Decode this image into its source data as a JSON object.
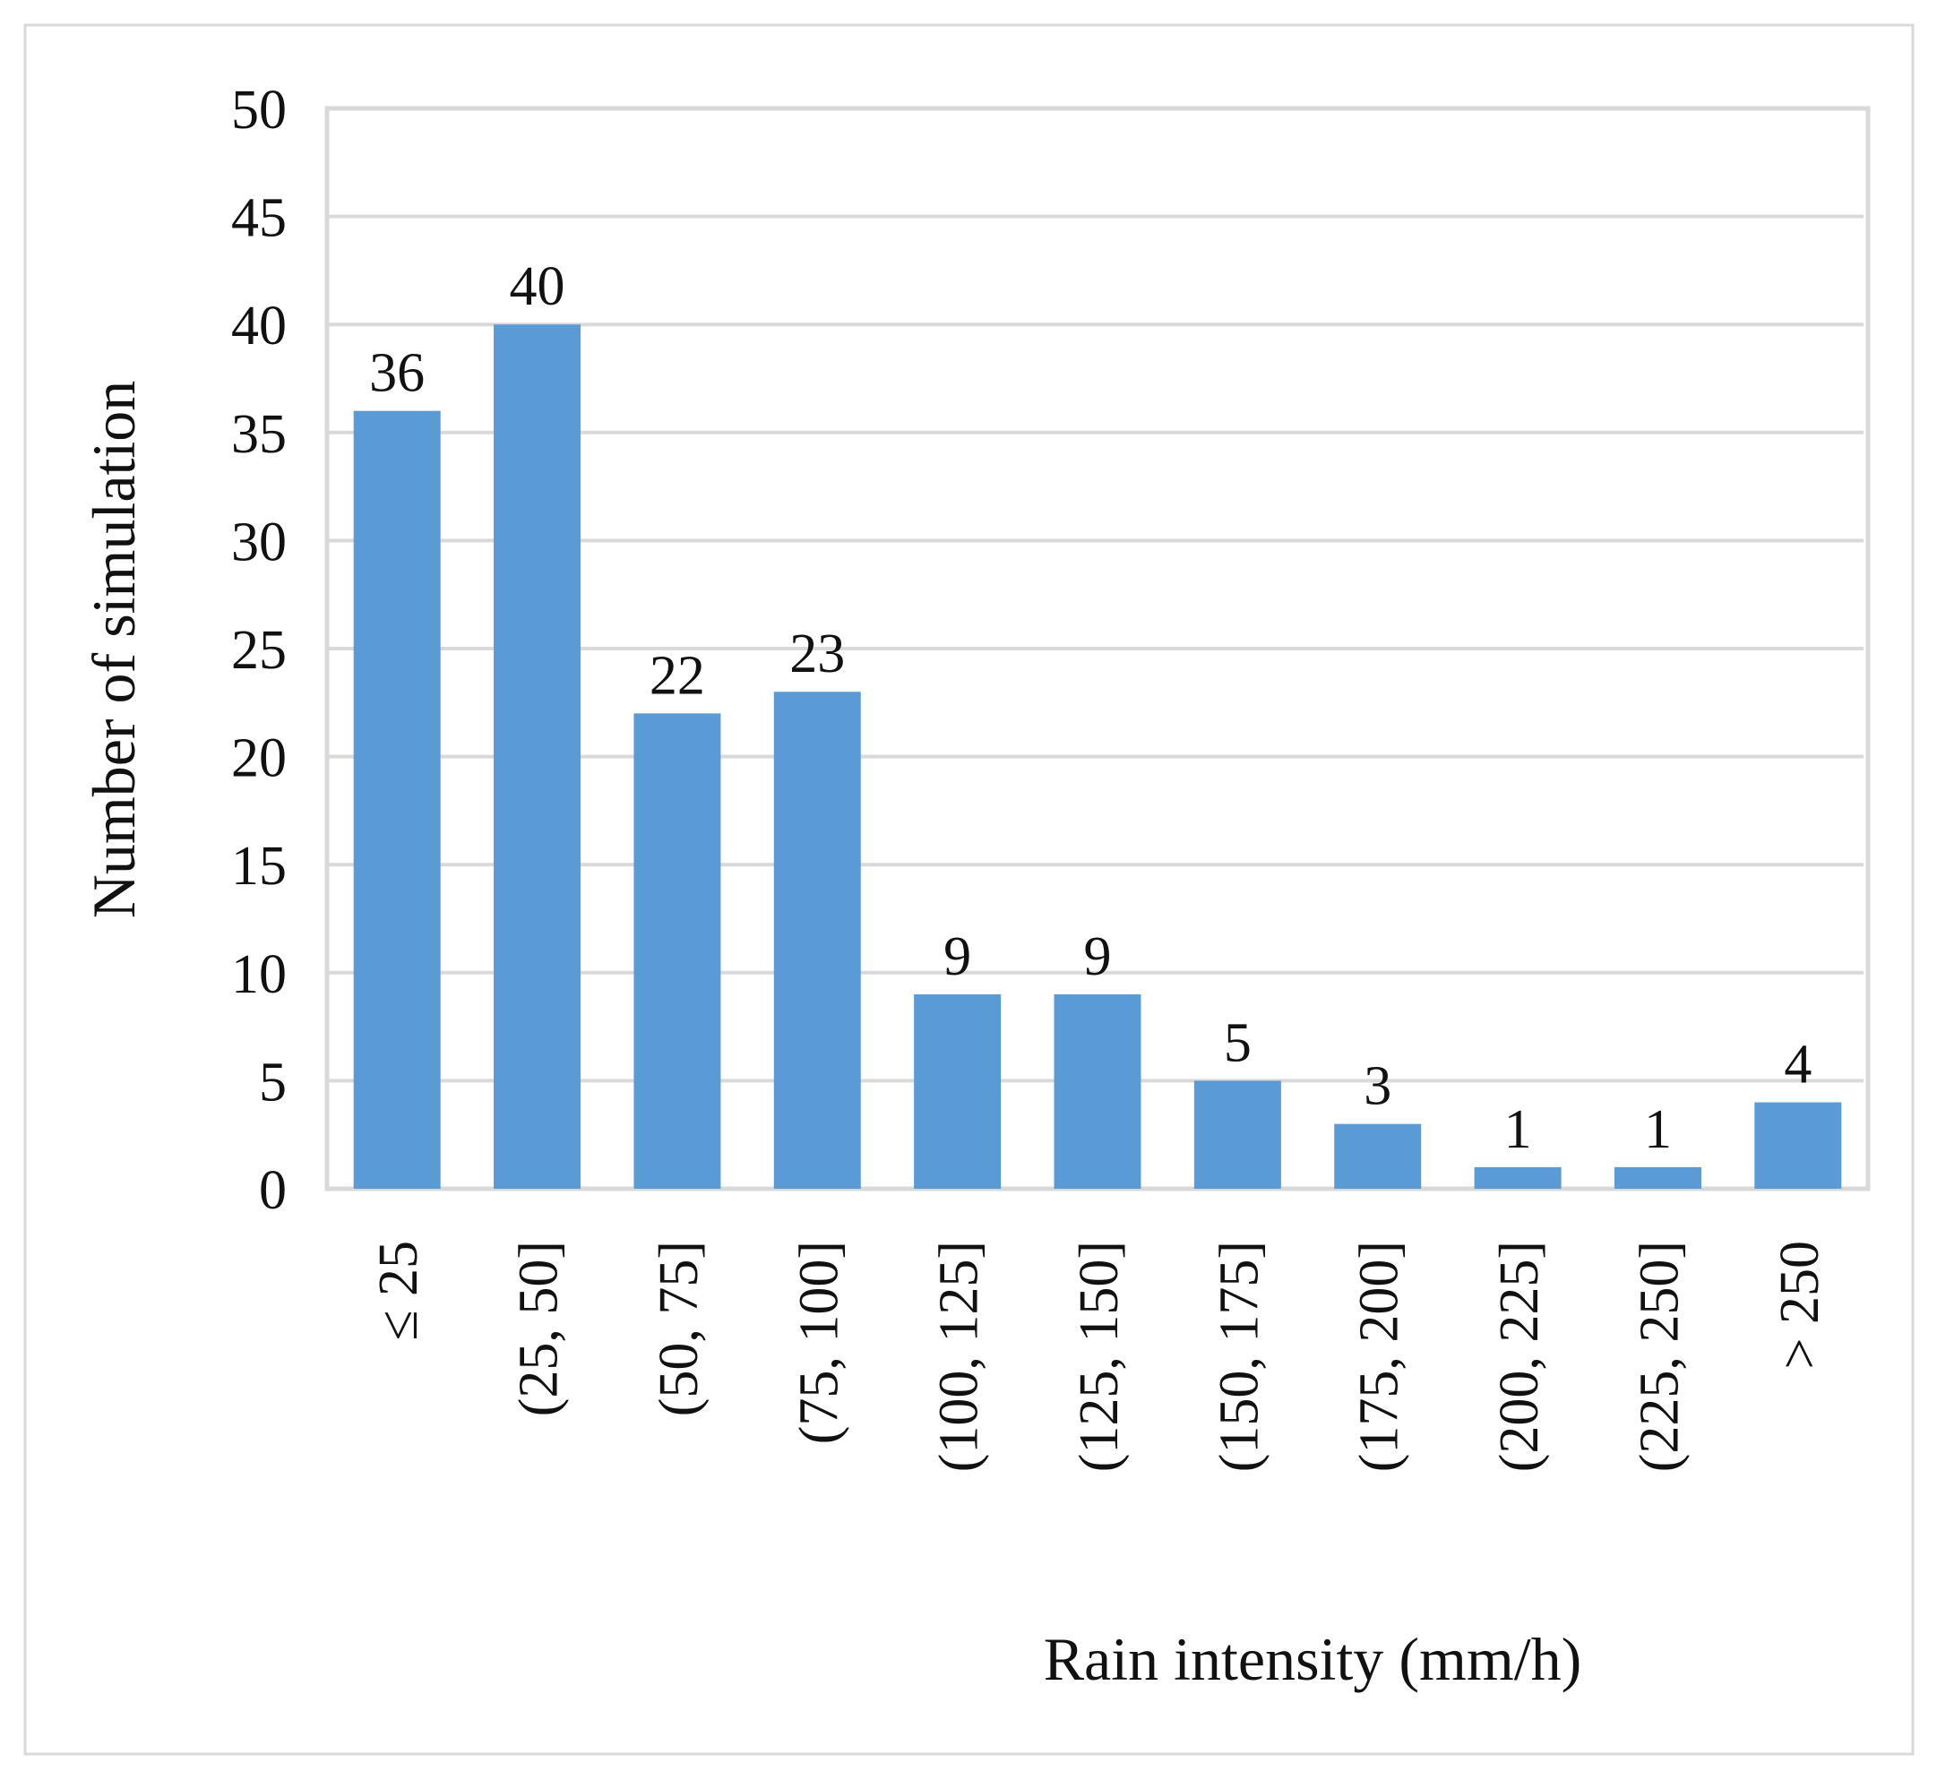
{
  "chart_data": {
    "type": "bar",
    "title": "",
    "xlabel": "Rain intensity (mm/h)",
    "ylabel": "Number of simulation",
    "categories": [
      "≤ 25",
      "(25, 50]",
      "(50, 75]",
      "(75, 100]",
      "(100, 125]",
      "(125, 150]",
      "(150, 175]",
      "(175, 200]",
      "(200, 225]",
      "(225, 250]",
      "> 250"
    ],
    "values": [
      36,
      40,
      22,
      23,
      9,
      9,
      5,
      3,
      1,
      1,
      4
    ],
    "data_labels": [
      "36",
      "40",
      "22",
      "23",
      "9",
      "9",
      "5",
      "3",
      "1",
      "1",
      "4"
    ],
    "ylim": [
      0,
      50
    ],
    "yticks": [
      "0",
      "5",
      "10",
      "15",
      "20",
      "25",
      "30",
      "35",
      "40",
      "45",
      "50"
    ],
    "grid": true,
    "legend": "none",
    "bar_color": "#5b9bd5"
  }
}
